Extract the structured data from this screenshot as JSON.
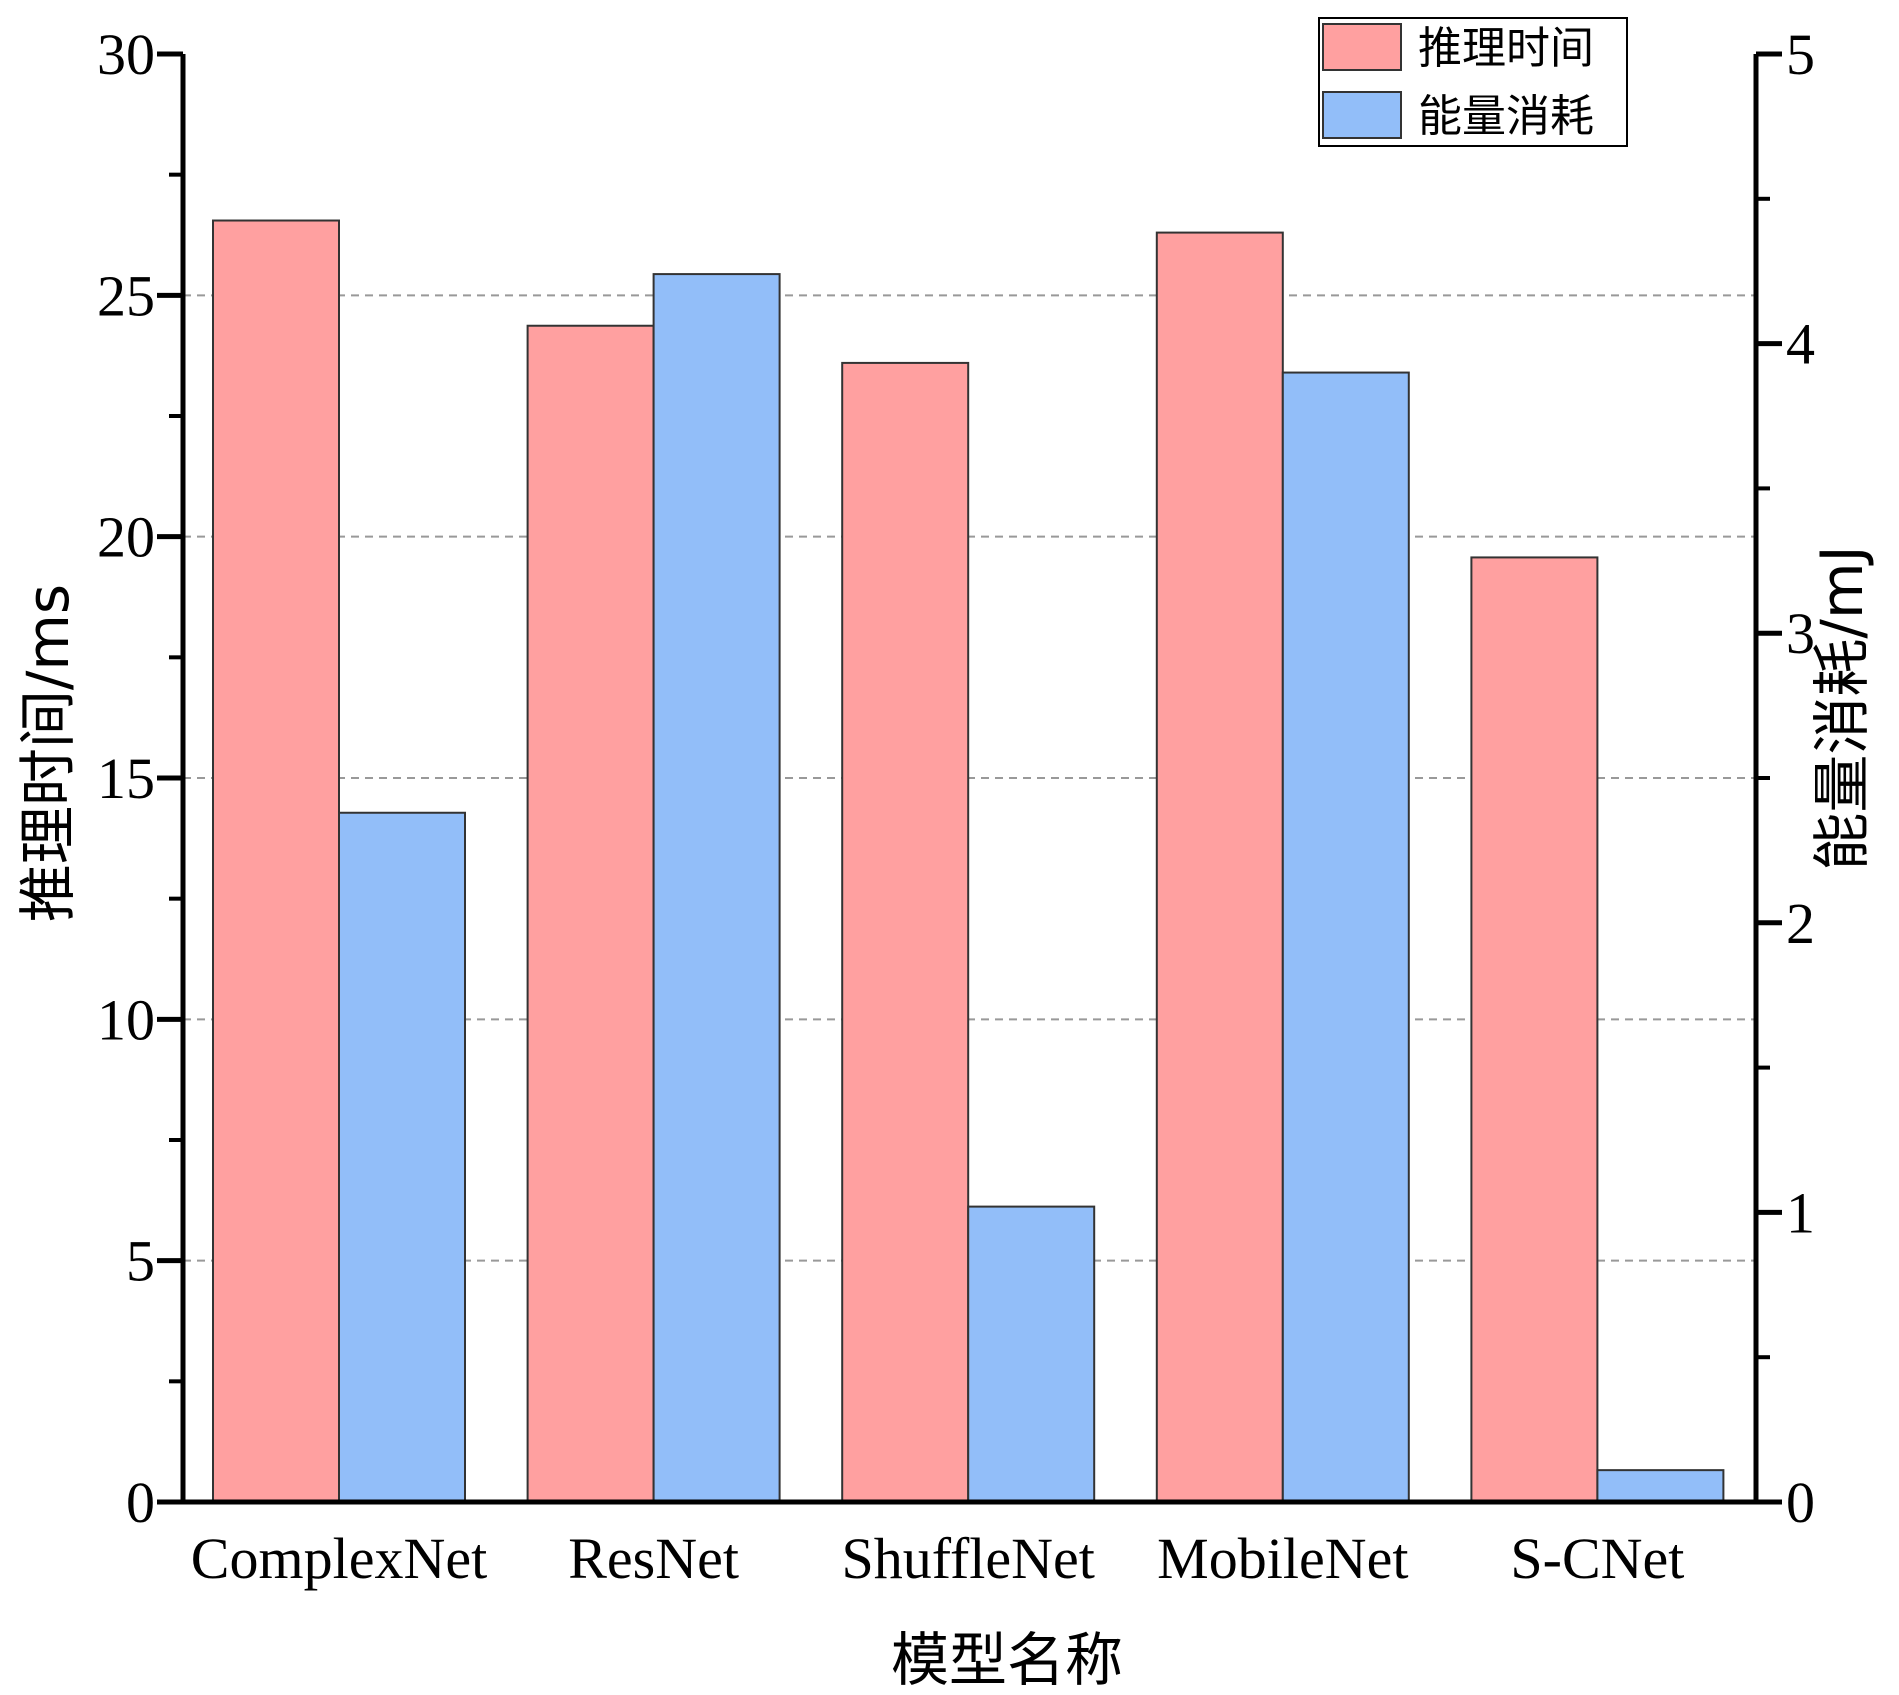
{
  "chart_data": {
    "type": "bar",
    "categories": [
      "ComplexNet",
      "ResNet",
      "ShuffleNet",
      "MobileNet",
      "S-CNet"
    ],
    "series": [
      {
        "name": "推理时间",
        "axis": "left",
        "color": "#FFA0A0",
        "values": [
          26.55,
          24.37,
          23.6,
          26.3,
          19.57
        ]
      },
      {
        "name": "能量消耗",
        "axis": "right",
        "color": "#92BEF9",
        "values": [
          2.38,
          4.24,
          1.02,
          3.9,
          0.11
        ]
      }
    ],
    "xlabel": "模型名称",
    "ylabel": "推理时间/ms",
    "y2label": "能量消耗/mJ",
    "ylim": [
      0,
      30
    ],
    "y2lim": [
      0,
      5
    ],
    "yticks": [
      "0",
      "5",
      "10",
      "15",
      "20",
      "25",
      "30"
    ],
    "y2ticks": [
      "0",
      "1",
      "2",
      "3",
      "4",
      "5"
    ],
    "grid": "horizontal dashed",
    "legend": "top-right",
    "colors": {
      "bar_outline": "#333333",
      "grid": "#999999",
      "axis": "#000000"
    }
  }
}
